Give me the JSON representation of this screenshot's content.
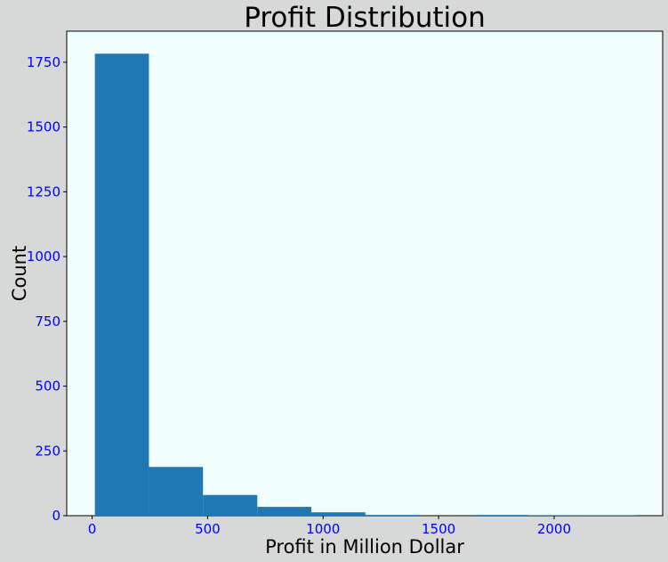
{
  "chart_data": {
    "type": "bar",
    "title": "Profit Distribution",
    "xlabel": "Profit in Million Dollar",
    "ylabel": "Count",
    "bins": [
      {
        "start": 12,
        "end": 246,
        "count": 1783
      },
      {
        "start": 246,
        "end": 480,
        "count": 188
      },
      {
        "start": 480,
        "end": 715,
        "count": 80
      },
      {
        "start": 715,
        "end": 949,
        "count": 34
      },
      {
        "start": 949,
        "end": 1183,
        "count": 13
      },
      {
        "start": 1183,
        "end": 1418,
        "count": 3
      },
      {
        "start": 1418,
        "end": 1652,
        "count": 0
      },
      {
        "start": 1652,
        "end": 1886,
        "count": 3
      },
      {
        "start": 1886,
        "end": 2121,
        "count": 1
      },
      {
        "start": 2121,
        "end": 2355,
        "count": 1
      }
    ],
    "xlim": [
      -110,
      2470
    ],
    "ylim": [
      0,
      1870
    ],
    "xticks": [
      0,
      500,
      1000,
      1500,
      2000
    ],
    "xtick_labels": [
      "0",
      "500",
      "1000",
      "1500",
      "2000"
    ],
    "yticks": [
      0,
      250,
      500,
      750,
      1000,
      1250,
      1500,
      1750
    ],
    "ytick_labels": [
      "0",
      "250",
      "500",
      "750",
      "1000",
      "1250",
      "1500",
      "1750"
    ],
    "grid": false,
    "colors": {
      "bar": "#1f77b4",
      "plot_background": "#f0fffe",
      "figure_background": "#d6d9d8",
      "tick_label": "#0000ff"
    }
  }
}
